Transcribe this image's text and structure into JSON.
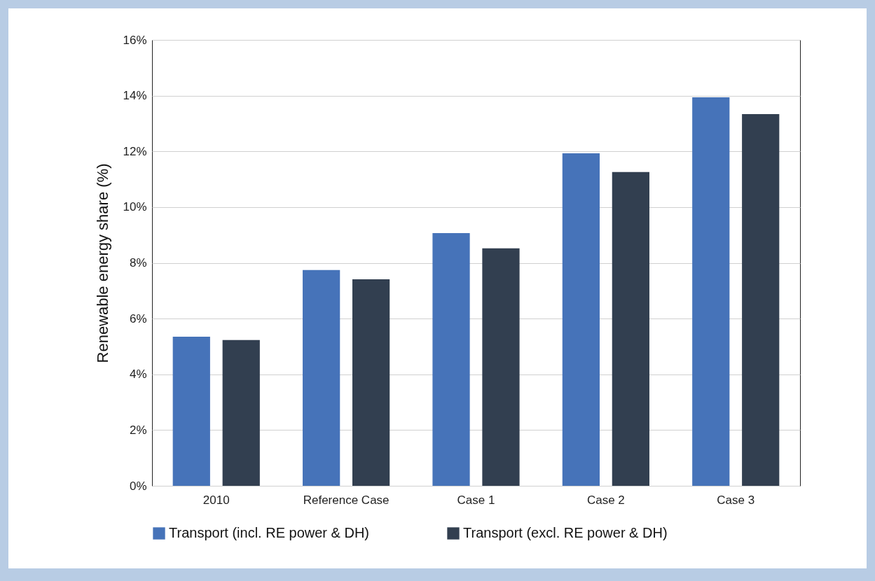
{
  "chart_data": {
    "type": "bar",
    "ylabel": "Renewable energy share (%)",
    "categories": [
      "2010",
      "Reference Case",
      "Case 1",
      "Case 2",
      "Case 3"
    ],
    "series": [
      {
        "name": "Transport (incl. RE power & DH)",
        "color": "#4673b9",
        "values": [
          5.35,
          7.74,
          9.07,
          11.93,
          13.94
        ]
      },
      {
        "name": "Transport (excl. RE power & DH)",
        "color": "#323f50",
        "values": [
          5.23,
          7.41,
          8.52,
          11.26,
          13.34
        ]
      }
    ],
    "ylim": [
      0,
      16
    ],
    "yticks": [
      {
        "value": 0,
        "label": "0%"
      },
      {
        "value": 2,
        "label": "2%"
      },
      {
        "value": 4,
        "label": "4%"
      },
      {
        "value": 6,
        "label": "6%"
      },
      {
        "value": 8,
        "label": "8%"
      },
      {
        "value": 10,
        "label": "10%"
      },
      {
        "value": 12,
        "label": "12%"
      },
      {
        "value": 14,
        "label": "14%"
      },
      {
        "value": 16,
        "label": "16%"
      }
    ],
    "grid": "y",
    "legend": "bottom"
  }
}
